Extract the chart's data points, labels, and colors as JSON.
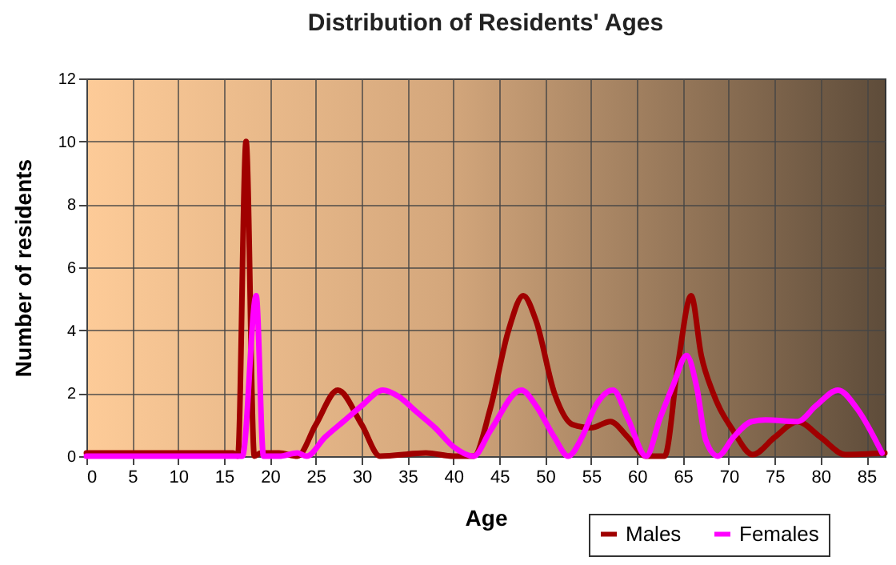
{
  "chart_data": {
    "type": "line",
    "title": "Distribution of Residents' Ages",
    "xlabel": "Age",
    "ylabel": "Number of residents",
    "xlim": [
      0,
      87
    ],
    "xticks": [
      0,
      5,
      10,
      15,
      20,
      25,
      30,
      35,
      40,
      45,
      50,
      55,
      60,
      65,
      70,
      75,
      80,
      85
    ],
    "ylim": [
      0,
      12
    ],
    "yticks": [
      0,
      2,
      4,
      6,
      8,
      10,
      12
    ],
    "grid": true,
    "legend": "bottom right",
    "marker": "none",
    "line_style": "solid",
    "series": [
      {
        "name": "Males",
        "color": "#a00000",
        "x": [
          0,
          16,
          16.5,
          17.4,
          18.3,
          19,
          21,
          23,
          25,
          27.4,
          30,
          32,
          37,
          40,
          42.2,
          44,
          46,
          47.6,
          49,
          51,
          53,
          55,
          57.1,
          59,
          61,
          63,
          64.5,
          65.9,
          67,
          68.3,
          70.5,
          72.6,
          75,
          77.5,
          80,
          82.7,
          87
        ],
        "values": [
          0.1,
          0.1,
          0,
          10,
          0,
          0.1,
          0.1,
          0,
          1,
          2.1,
          1,
          0,
          0.1,
          0,
          0,
          1.5,
          4,
          5.1,
          4.3,
          2,
          1,
          0.9,
          1.1,
          0.6,
          0,
          0,
          3,
          5.1,
          3.2,
          2,
          0.8,
          0.05,
          0.6,
          1.1,
          0.6,
          0.05,
          0.1
        ]
      },
      {
        "name": "Females",
        "color": "#ff00ff",
        "x": [
          0,
          17,
          18.5,
          19.3,
          21,
          23,
          24,
          26,
          28,
          30,
          32.3,
          34,
          36,
          38,
          40,
          42.2,
          44,
          47.4,
          49,
          51,
          52.5,
          54,
          55.5,
          57.4,
          59,
          61,
          62.5,
          64,
          65.4,
          66.5,
          67.5,
          68.8,
          70.5,
          72.5,
          74,
          77.5,
          79.5,
          81.9,
          84,
          86.7
        ],
        "values": [
          0,
          0,
          5.1,
          0,
          0,
          0.1,
          0,
          0.6,
          1.1,
          1.6,
          2.1,
          1.9,
          1.4,
          0.9,
          0.3,
          0,
          0.8,
          2.1,
          1.6,
          0.6,
          0,
          0.6,
          1.6,
          2.1,
          1.2,
          0,
          1.2,
          2.3,
          3.2,
          2.2,
          0.5,
          0,
          0.6,
          1.1,
          1.15,
          1.1,
          1.6,
          2.1,
          1.5,
          0.1
        ]
      }
    ]
  }
}
